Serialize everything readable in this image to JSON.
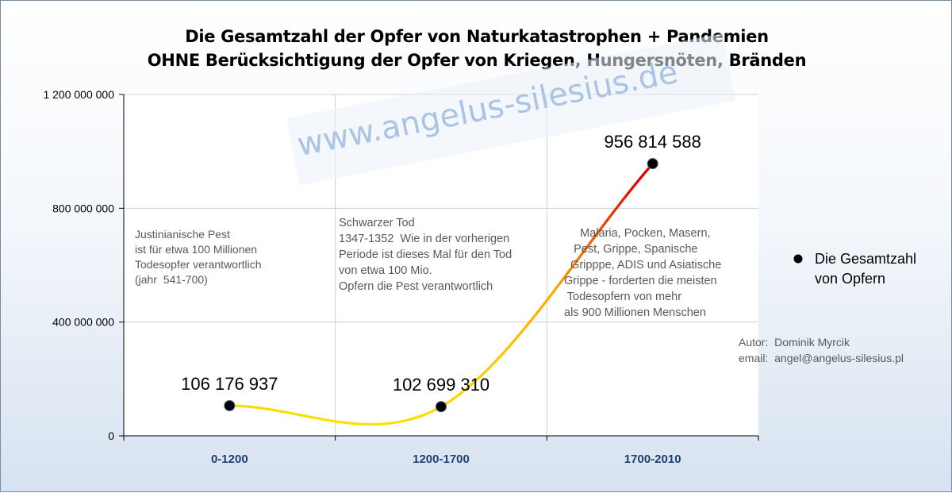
{
  "title_line1": "Die Gesamtzahl der Opfer von Naturkatastrophen + Pandemien",
  "title_line2": "OHNE Berücksichtigung der Opfer von Kriegen, Hungersnöten, Bränden",
  "watermark": "www.angelus-silesius.de",
  "notes": {
    "period1": "Justinianische Pest\nist für etwa 100 Millionen\nTodesopfer verantwortlich\n(jahr  541-700)",
    "period2": "Schwarzer Tod\n1347-1352  Wie in der vorherigen\nPeriode ist dieses Mal für den Tod\nvon etwa 100 Mio.\nOpfern die Pest verantwortlich",
    "period3": "     Malaria, Pocken, Masern,\n   Pest, Grippe, Spanische\n  Gripppe, ADIS und Asiatische\nGrippe - forderten die meisten\n Todesopfern von mehr\nals 900 Millionen Menschen",
    "author": "Autor:  Dominik Myrcik\nemail:  angel@angelus-silesius.pl"
  },
  "legend": {
    "label": "Die Gesamtzahl von Opfern"
  },
  "colors": {
    "gradient_start": "#ffe600",
    "gradient_mid": "#ffaa00",
    "gradient_end": "#e00000",
    "axis_label": "#1f3f73"
  },
  "chart_data": {
    "type": "line",
    "smooth": true,
    "categories": [
      "0-1200",
      "1200-1700",
      "1700-2010"
    ],
    "series": [
      {
        "name": "Die Gesamtzahl von Opfern",
        "values": [
          106176937,
          102699310,
          956814588
        ]
      }
    ],
    "data_labels": [
      "106 176 937",
      "102 699 310",
      "956 814 588"
    ],
    "ylim": [
      0,
      1200000000
    ],
    "yticks": [
      0,
      400000000,
      800000000,
      1200000000
    ],
    "ytick_labels": [
      "0",
      "400 000 000",
      "800 000 000",
      "1 200 000 000"
    ],
    "grid": true,
    "legend_position": "right"
  }
}
